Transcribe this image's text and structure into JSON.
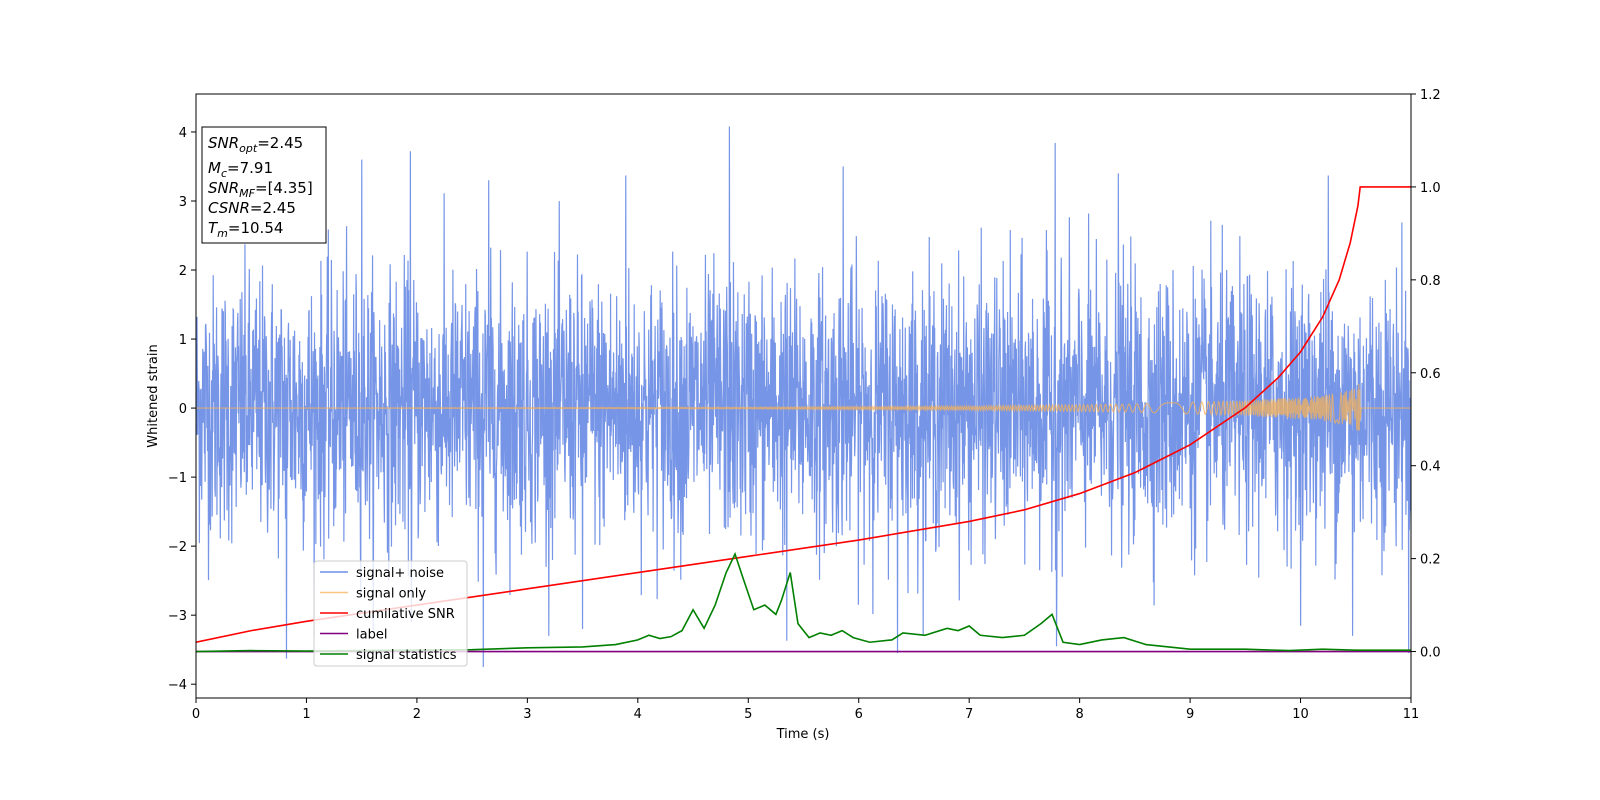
{
  "chart_data": {
    "type": "line",
    "xlabel": "Time (s)",
    "ylabel": "Whitened strain",
    "xlim": [
      0,
      11
    ],
    "ylim_left": [
      -4.2,
      4.55
    ],
    "ylim_right": [
      -0.1,
      1.2
    ],
    "xticks": [
      0,
      1,
      2,
      3,
      4,
      5,
      6,
      7,
      8,
      9,
      10,
      11
    ],
    "yticks_left": [
      -4,
      -3,
      -2,
      -1,
      0,
      1,
      2,
      3,
      4
    ],
    "yticks_right": [
      0.0,
      0.2,
      0.4,
      0.6,
      0.8,
      1.0,
      1.2
    ],
    "grid": false,
    "legend_position": "lower-left",
    "annotation_box": {
      "position": "top-left",
      "lines": [
        {
          "base": "SNR",
          "sub": "opt",
          "value": "=2.45"
        },
        {
          "base": "M",
          "sub": "c",
          "value": "=7.91"
        },
        {
          "base": "SNR",
          "sub": "MF",
          "value": "=[4.35]"
        },
        {
          "base": "CSNR",
          "sub": "",
          "value": "=2.45"
        },
        {
          "base": "T",
          "sub": "m",
          "value": "=10.54"
        }
      ]
    },
    "series": [
      {
        "name": "signal+ noise",
        "color": "#6f8fe6",
        "axis": "left",
        "kind": "noise",
        "sigma": 1.0,
        "extremes": [
          [
            1.5,
            3.6
          ],
          [
            1.94,
            3.72
          ],
          [
            2.65,
            3.3
          ],
          [
            3.5,
            3.5
          ],
          [
            3.89,
            3.37
          ],
          [
            4.83,
            4.08
          ],
          [
            5.86,
            3.5
          ],
          [
            7.78,
            3.84
          ],
          [
            8.35,
            3.4
          ],
          [
            10.25,
            3.37
          ],
          [
            0.82,
            -3.63
          ],
          [
            1.95,
            -3.1
          ],
          [
            2.6,
            -3.75
          ],
          [
            3.5,
            -3.2
          ],
          [
            5.35,
            -3.37
          ],
          [
            6.35,
            -3.55
          ],
          [
            7.79,
            -3.45
          ],
          [
            10.47,
            -3.3
          ],
          [
            10.98,
            -3.55
          ]
        ]
      },
      {
        "name": "signal only",
        "color": "#f5b25a",
        "axis": "left",
        "kind": "chirp",
        "envelope": [
          [
            0,
            0.0
          ],
          [
            5,
            0.01
          ],
          [
            7,
            0.03
          ],
          [
            8.5,
            0.06
          ],
          [
            9.5,
            0.11
          ],
          [
            10.2,
            0.18
          ],
          [
            10.45,
            0.26
          ],
          [
            10.54,
            0.36
          ],
          [
            10.55,
            0.0
          ],
          [
            11,
            0.0
          ]
        ]
      },
      {
        "name": "cumilative SNR",
        "color": "#ff0000",
        "axis": "right",
        "kind": "line",
        "x": [
          0,
          0.5,
          1,
          2,
          3,
          4,
          5,
          6,
          7,
          7.5,
          8,
          8.5,
          9,
          9.5,
          9.8,
          10.0,
          10.2,
          10.35,
          10.45,
          10.52,
          10.54,
          11
        ],
        "y": [
          0.02,
          0.045,
          0.065,
          0.1,
          0.135,
          0.17,
          0.205,
          0.24,
          0.28,
          0.305,
          0.34,
          0.385,
          0.445,
          0.525,
          0.59,
          0.645,
          0.72,
          0.8,
          0.88,
          0.96,
          1.0,
          1.0
        ]
      },
      {
        "name": "label",
        "color": "#800080",
        "axis": "right",
        "kind": "line",
        "x": [
          0,
          11
        ],
        "y": [
          0.0,
          0.0
        ]
      },
      {
        "name": "signal statistics",
        "color": "#008000",
        "axis": "right",
        "kind": "line",
        "x": [
          0,
          0.5,
          1,
          1.5,
          2,
          2.5,
          3,
          3.5,
          3.8,
          4,
          4.1,
          4.2,
          4.3,
          4.4,
          4.5,
          4.6,
          4.7,
          4.8,
          4.88,
          4.95,
          5.05,
          5.15,
          5.25,
          5.3,
          5.38,
          5.45,
          5.55,
          5.65,
          5.75,
          5.85,
          5.95,
          6.1,
          6.3,
          6.4,
          6.6,
          6.8,
          6.9,
          7.0,
          7.1,
          7.3,
          7.5,
          7.65,
          7.75,
          7.85,
          8.0,
          8.2,
          8.4,
          8.6,
          9.0,
          9.5,
          9.9,
          10.2,
          10.5,
          11
        ],
        "y": [
          0.0,
          0.002,
          0.001,
          0.002,
          0.003,
          0.004,
          0.008,
          0.01,
          0.015,
          0.025,
          0.035,
          0.028,
          0.032,
          0.045,
          0.09,
          0.05,
          0.1,
          0.17,
          0.21,
          0.16,
          0.09,
          0.1,
          0.08,
          0.11,
          0.17,
          0.06,
          0.03,
          0.04,
          0.035,
          0.045,
          0.03,
          0.02,
          0.025,
          0.04,
          0.035,
          0.05,
          0.045,
          0.055,
          0.035,
          0.03,
          0.035,
          0.06,
          0.08,
          0.02,
          0.015,
          0.025,
          0.03,
          0.015,
          0.005,
          0.005,
          0.002,
          0.005,
          0.003,
          0.003
        ]
      }
    ]
  }
}
